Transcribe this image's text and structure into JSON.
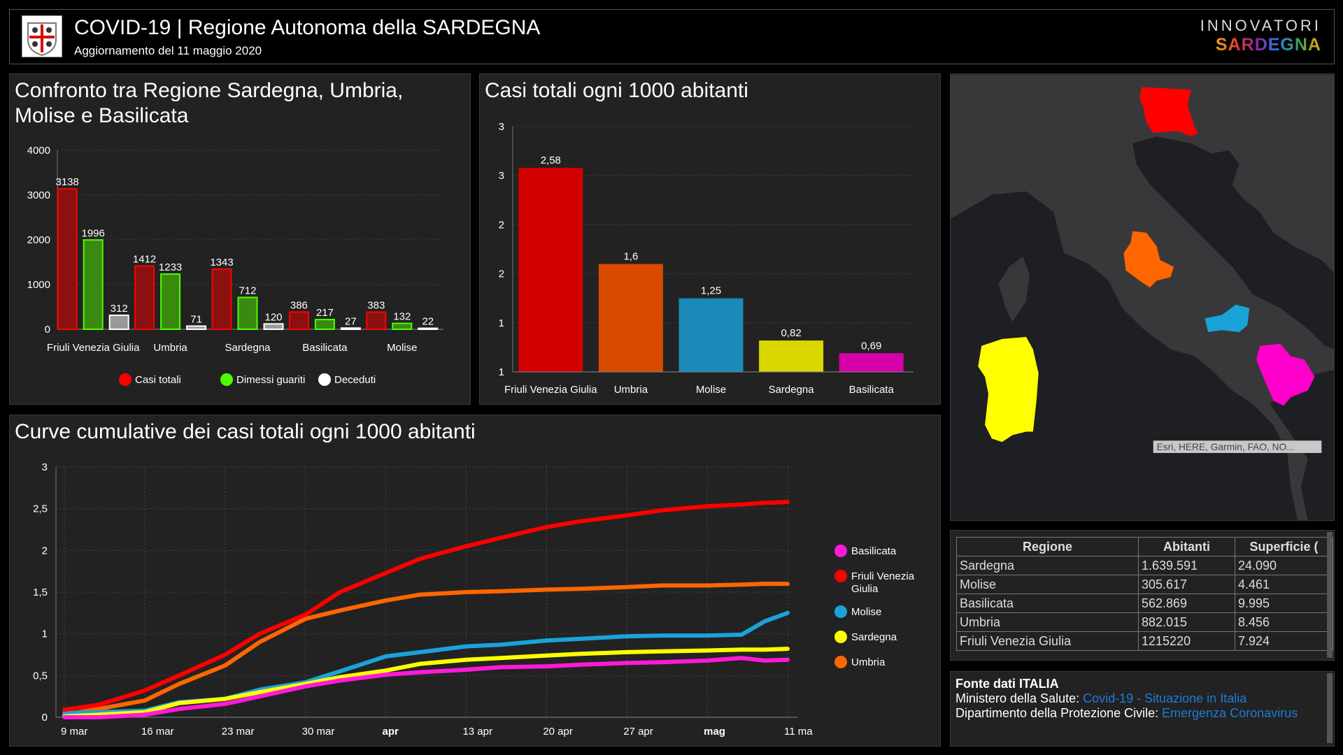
{
  "header": {
    "title": "COVID-19 | Regione Autonoma della SARDEGNA",
    "subtitle": "Aggiornamento del 11 maggio 2020",
    "brand_top": "INNOVATORI",
    "brand_bottom": "SARDEGNA"
  },
  "chart_data": [
    {
      "type": "bar",
      "title": "Confronto tra Regione Sardegna, Umbria, Molise e Basilicata",
      "categories": [
        "Friuli Venezia Giulia",
        "Umbria",
        "Sardegna",
        "Basilicata",
        "Molise"
      ],
      "series": [
        {
          "name": "Casi totali",
          "color": "#ff0000",
          "values": [
            3138,
            1412,
            1343,
            386,
            383
          ]
        },
        {
          "name": "Dimessi guariti",
          "color": "#4cff00",
          "values": [
            1996,
            1233,
            712,
            217,
            132
          ]
        },
        {
          "name": "Deceduti",
          "color": "#ffffff",
          "values": [
            312,
            71,
            120,
            27,
            22
          ]
        }
      ],
      "ylim": [
        0,
        4000
      ],
      "yticks": [
        "0",
        "1000",
        "2000",
        "3000",
        "4000"
      ],
      "legend": "bottom",
      "grid": true
    },
    {
      "type": "bar",
      "title": "Casi totali ogni 1000 abitanti",
      "categories": [
        "Friuli Venezia Giulia",
        "Umbria",
        "Molise",
        "Sardegna",
        "Basilicata"
      ],
      "values": [
        2.58,
        1.6,
        1.25,
        0.82,
        0.69
      ],
      "labels": [
        "2,58",
        "1,6",
        "1,25",
        "0,82",
        "0,69"
      ],
      "colors": [
        "#d00000",
        "#d94a00",
        "#1a8ab8",
        "#d9d600",
        "#d600a8"
      ],
      "ylim": [
        0.5,
        3
      ],
      "yticks": [
        "1",
        "1",
        "2",
        "2",
        "3",
        "3"
      ],
      "grid": true
    },
    {
      "type": "line",
      "title": "Curve cumulative dei casi totali ogni 1000 abitanti",
      "x": [
        "2020-03-09",
        "2020-03-12",
        "2020-03-16",
        "2020-03-19",
        "2020-03-23",
        "2020-03-26",
        "2020-03-30",
        "2020-04-02",
        "2020-04-06",
        "2020-04-09",
        "2020-04-13",
        "2020-04-16",
        "2020-04-20",
        "2020-04-23",
        "2020-04-27",
        "2020-04-30",
        "2020-05-04",
        "2020-05-07",
        "2020-05-09",
        "2020-05-11"
      ],
      "xticks": [
        {
          "date": "2020-03-09",
          "label": "9 mar"
        },
        {
          "date": "2020-03-16",
          "label": "16 mar"
        },
        {
          "date": "2020-03-23",
          "label": "23 mar"
        },
        {
          "date": "2020-03-30",
          "label": "30 mar"
        },
        {
          "date": "2020-04-06",
          "label": "apr"
        },
        {
          "date": "2020-04-13",
          "label": "13 apr"
        },
        {
          "date": "2020-04-20",
          "label": "20 apr"
        },
        {
          "date": "2020-04-27",
          "label": "27 apr"
        },
        {
          "date": "2020-05-04",
          "label": "mag"
        },
        {
          "date": "2020-05-11",
          "label": "11 ma"
        }
      ],
      "ylim": [
        0,
        3
      ],
      "yticks": [
        "0",
        "0,5",
        "1",
        "1,5",
        "2",
        "2,5",
        "3"
      ],
      "legend": "right",
      "grid": true,
      "series": [
        {
          "name": "Basilicata",
          "color": "#ff1ad9",
          "values": [
            0,
            0,
            0.03,
            0.1,
            0.16,
            0.25,
            0.37,
            0.44,
            0.51,
            0.54,
            0.57,
            0.6,
            0.61,
            0.63,
            0.65,
            0.66,
            0.68,
            0.71,
            0.68,
            0.69
          ]
        },
        {
          "name": "Friuli Venezia Giulia",
          "color": "#ff0000",
          "values": [
            0.09,
            0.15,
            0.32,
            0.5,
            0.75,
            1.0,
            1.23,
            1.5,
            1.73,
            1.9,
            2.05,
            2.15,
            2.28,
            2.35,
            2.42,
            2.48,
            2.53,
            2.55,
            2.57,
            2.58
          ]
        },
        {
          "name": "Molise",
          "color": "#1aa3d9",
          "values": [
            0.05,
            0.06,
            0.08,
            0.18,
            0.22,
            0.33,
            0.42,
            0.55,
            0.73,
            0.78,
            0.85,
            0.87,
            0.92,
            0.94,
            0.97,
            0.98,
            0.98,
            0.99,
            1.15,
            1.25
          ]
        },
        {
          "name": "Sardegna",
          "color": "#ffff00",
          "values": [
            0.01,
            0.03,
            0.06,
            0.17,
            0.22,
            0.3,
            0.4,
            0.48,
            0.56,
            0.64,
            0.69,
            0.71,
            0.74,
            0.76,
            0.78,
            0.79,
            0.8,
            0.81,
            0.81,
            0.82
          ]
        },
        {
          "name": "Umbria",
          "color": "#ff6600",
          "values": [
            0.03,
            0.1,
            0.2,
            0.4,
            0.62,
            0.9,
            1.18,
            1.28,
            1.4,
            1.47,
            1.5,
            1.51,
            1.53,
            1.54,
            1.56,
            1.58,
            1.58,
            1.59,
            1.6,
            1.6
          ]
        }
      ]
    }
  ],
  "map": {
    "attribution": "Esri, HERE, Garmin, FAO, NO...",
    "region_colors": {
      "Friuli Venezia Giulia": "#ff0000",
      "Umbria": "#ff6600",
      "Molise": "#1aa3d9",
      "Basilicata": "#ff00cc",
      "Sardegna": "#ffff00"
    }
  },
  "table": {
    "columns": [
      "Regione",
      "Abitanti",
      "Superficie ("
    ],
    "rows": [
      [
        "Sardegna",
        "1.639.591",
        "24.090"
      ],
      [
        "Molise",
        "305.617",
        "4.461"
      ],
      [
        "Basilicata",
        "562.869",
        "9.995"
      ],
      [
        "Umbria",
        "882.015",
        "8.456"
      ],
      [
        "Friuli Venezia Giulia",
        "1215220",
        "7.924"
      ]
    ]
  },
  "source": {
    "title": "Fonte dati ITALIA",
    "line1_label": "Ministero della Salute: ",
    "line1_link": "Covid-19 - Situazione in Italia",
    "line2_label": "Dipartimento della Protezione Civile: ",
    "line2_link": "Emergenza Coronavirus"
  }
}
